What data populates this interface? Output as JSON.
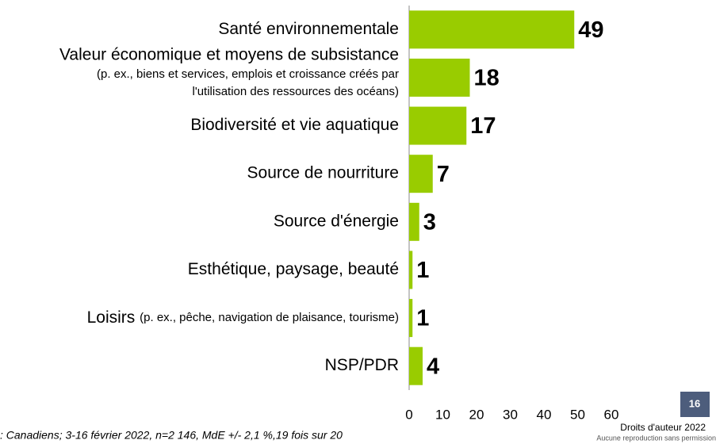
{
  "chart_data": {
    "type": "bar",
    "orientation": "horizontal",
    "categories": [
      "Santé environnementale",
      {
        "label": "Valeur économique et moyens de subsistance",
        "note": [
          "(p. ex., biens et services, emplois et croissance créés par",
          "l'utilisation des ressources des océans)"
        ]
      },
      "Biodiversité et vie aquatique",
      "Source de nourriture",
      "Source d'énergie",
      "Esthétique, paysage, beauté",
      {
        "label": "Loisirs",
        "note": [
          "(p. ex., pêche, navigation de plaisance, tourisme)"
        ]
      },
      "NSP/PDR"
    ],
    "values": [
      49,
      18,
      17,
      7,
      3,
      1,
      1,
      4
    ],
    "color": "#99cc00",
    "xlim": [
      0,
      60
    ],
    "xticks": [
      0,
      10,
      20,
      30,
      40,
      50,
      60
    ],
    "source": ": Canadiens; 3-16 février 2022, n=2 146, MdE +/- 2,1 %,19 fois sur 20",
    "copyright": "Droits d'auteur 2022",
    "copyright_note": "Aucune reproduction sans permission",
    "page_number": "16"
  }
}
